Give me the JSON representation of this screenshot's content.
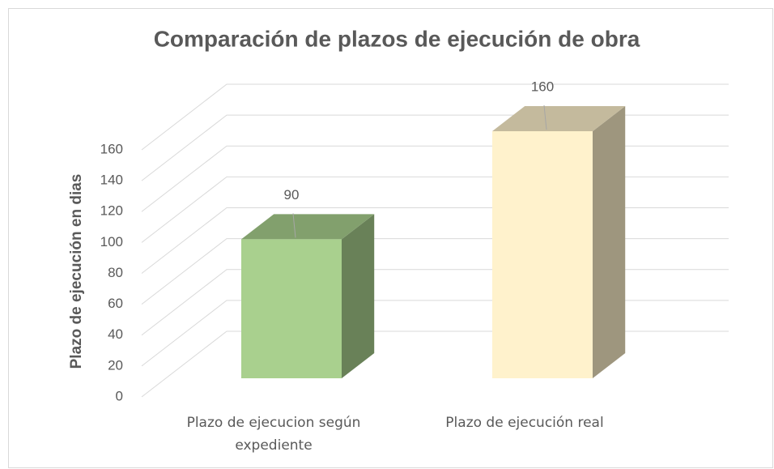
{
  "chart_data": {
    "type": "bar3d",
    "title": "Comparación de plazos de ejecución de obra",
    "y_label": "Plazo de ejecución en dias",
    "categories": [
      "Plazo de ejecucion según expediente",
      "Plazo de ejecución real"
    ],
    "values": [
      90,
      160
    ],
    "colors": [
      "#a9d08e",
      "#fff2cc"
    ],
    "ylim": [
      0,
      160
    ],
    "yticks": [
      0,
      20,
      40,
      60,
      80,
      100,
      120,
      140,
      160
    ],
    "grid": true
  }
}
